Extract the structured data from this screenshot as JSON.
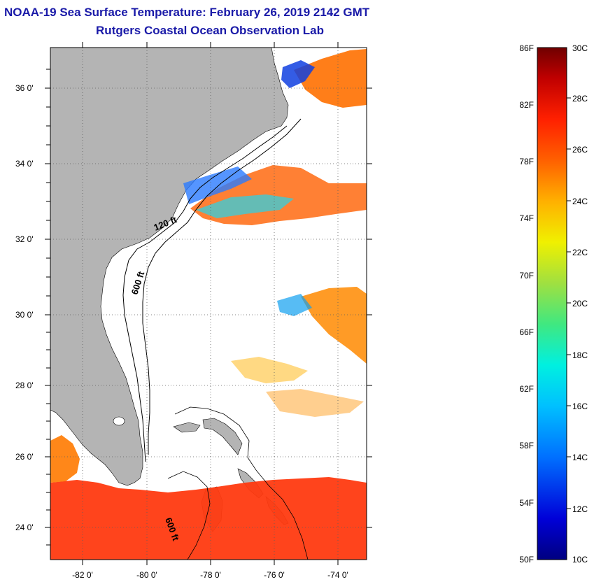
{
  "header": {
    "title": "NOAA-19 Sea Surface Temperature:  February 26, 2019 2142 GMT",
    "subtitle": "Rutgers Coastal Ocean Observation Lab"
  },
  "map": {
    "lat_labels": [
      "36 0'",
      "34 0'",
      "32 0'",
      "30 0'",
      "28 0'",
      "26 0'",
      "24 0'"
    ],
    "lon_labels": [
      "-82 0'",
      "-80 0'",
      "-78 0'",
      "-76 0'",
      "-74 0'"
    ],
    "contours": {
      "shelf": "120 ft",
      "slope": "600 ft",
      "bahamas": "600 ft"
    },
    "colors": {
      "land": "#b4b4b4",
      "missing": "#ffffff",
      "outline": "#000000"
    }
  },
  "colorbar": {
    "fahrenheit": [
      "86F",
      "82F",
      "78F",
      "74F",
      "70F",
      "66F",
      "62F",
      "58F",
      "54F",
      "50F"
    ],
    "celsius": [
      "30C",
      "28C",
      "26C",
      "24C",
      "22C",
      "20C",
      "18C",
      "16C",
      "14C",
      "12C",
      "10C"
    ],
    "stops": [
      "#000080",
      "#0000d8",
      "#0070ff",
      "#00c0ff",
      "#00f0e0",
      "#40e880",
      "#a0e040",
      "#f0f000",
      "#ffb000",
      "#ff6000",
      "#ff2000",
      "#c00000",
      "#700000"
    ]
  }
}
